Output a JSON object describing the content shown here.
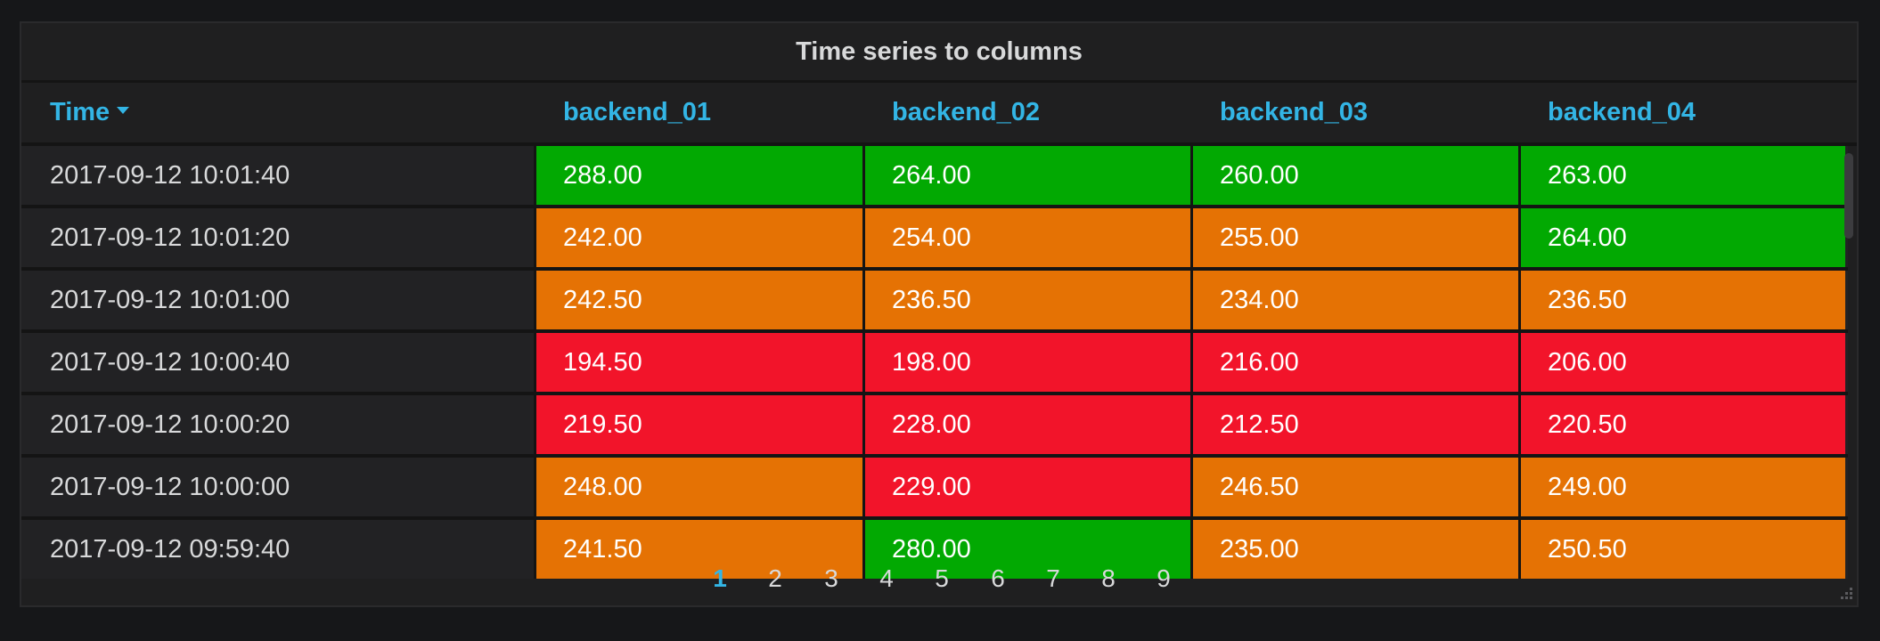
{
  "panel": {
    "title": "Time series to columns"
  },
  "columns": [
    {
      "label": "Time",
      "sorted": "desc"
    },
    {
      "label": "backend_01"
    },
    {
      "label": "backend_02"
    },
    {
      "label": "backend_03"
    },
    {
      "label": "backend_04"
    }
  ],
  "colors": {
    "green": "#02a902",
    "orange": "#e57204",
    "red": "#f2142a",
    "header_text": "#33b5e5"
  },
  "rows": [
    {
      "time": "2017-09-12 10:01:40",
      "values": [
        "288.00",
        "264.00",
        "260.00",
        "263.00"
      ],
      "status": [
        "green",
        "green",
        "green",
        "green"
      ]
    },
    {
      "time": "2017-09-12 10:01:20",
      "values": [
        "242.00",
        "254.00",
        "255.00",
        "264.00"
      ],
      "status": [
        "orange",
        "orange",
        "orange",
        "green"
      ]
    },
    {
      "time": "2017-09-12 10:01:00",
      "values": [
        "242.50",
        "236.50",
        "234.00",
        "236.50"
      ],
      "status": [
        "orange",
        "orange",
        "orange",
        "orange"
      ]
    },
    {
      "time": "2017-09-12 10:00:40",
      "values": [
        "194.50",
        "198.00",
        "216.00",
        "206.00"
      ],
      "status": [
        "red",
        "red",
        "red",
        "red"
      ]
    },
    {
      "time": "2017-09-12 10:00:20",
      "values": [
        "219.50",
        "228.00",
        "212.50",
        "220.50"
      ],
      "status": [
        "red",
        "red",
        "red",
        "red"
      ]
    },
    {
      "time": "2017-09-12 10:00:00",
      "values": [
        "248.00",
        "229.00",
        "246.50",
        "249.00"
      ],
      "status": [
        "orange",
        "red",
        "orange",
        "orange"
      ]
    },
    {
      "time": "2017-09-12 09:59:40",
      "values": [
        "241.50",
        "280.00",
        "235.00",
        "250.50"
      ],
      "status": [
        "orange",
        "green",
        "orange",
        "orange"
      ]
    }
  ],
  "pagination": {
    "pages": [
      "1",
      "2",
      "3",
      "4",
      "5",
      "6",
      "7",
      "8",
      "9"
    ],
    "current": "1"
  }
}
